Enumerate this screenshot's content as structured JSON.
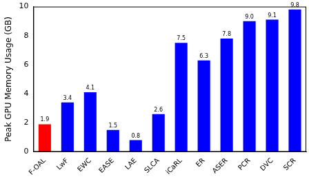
{
  "chart_data": {
    "type": "bar",
    "y_label": "Peak GPU Memory Usage (GB)",
    "categories": [
      "F-OAL",
      "LwF",
      "EWC",
      "EASE",
      "LAE",
      "SLCA",
      "iCaRL",
      "ER",
      "ASER",
      "PCR",
      "DVC",
      "SCR"
    ],
    "values": [
      1.9,
      3.4,
      4.1,
      1.5,
      0.8,
      2.6,
      7.5,
      6.3,
      7.8,
      9.0,
      9.1,
      9.8
    ],
    "value_labels": [
      "1.9",
      "3.4",
      "4.1",
      "1.5",
      "0.8",
      "2.6",
      "7.5",
      "6.3",
      "7.8",
      "9.0",
      "9.1",
      "9.8"
    ],
    "colors": [
      "#ff0000",
      "#0000ff",
      "#0000ff",
      "#0000ff",
      "#0000ff",
      "#0000ff",
      "#0000ff",
      "#0000ff",
      "#0000ff",
      "#0000ff",
      "#0000ff",
      "#0000ff"
    ],
    "ylim": [
      0,
      10
    ],
    "yticks": [
      0,
      2,
      4,
      6,
      8,
      10
    ],
    "grid": false,
    "data_labels": true
  }
}
